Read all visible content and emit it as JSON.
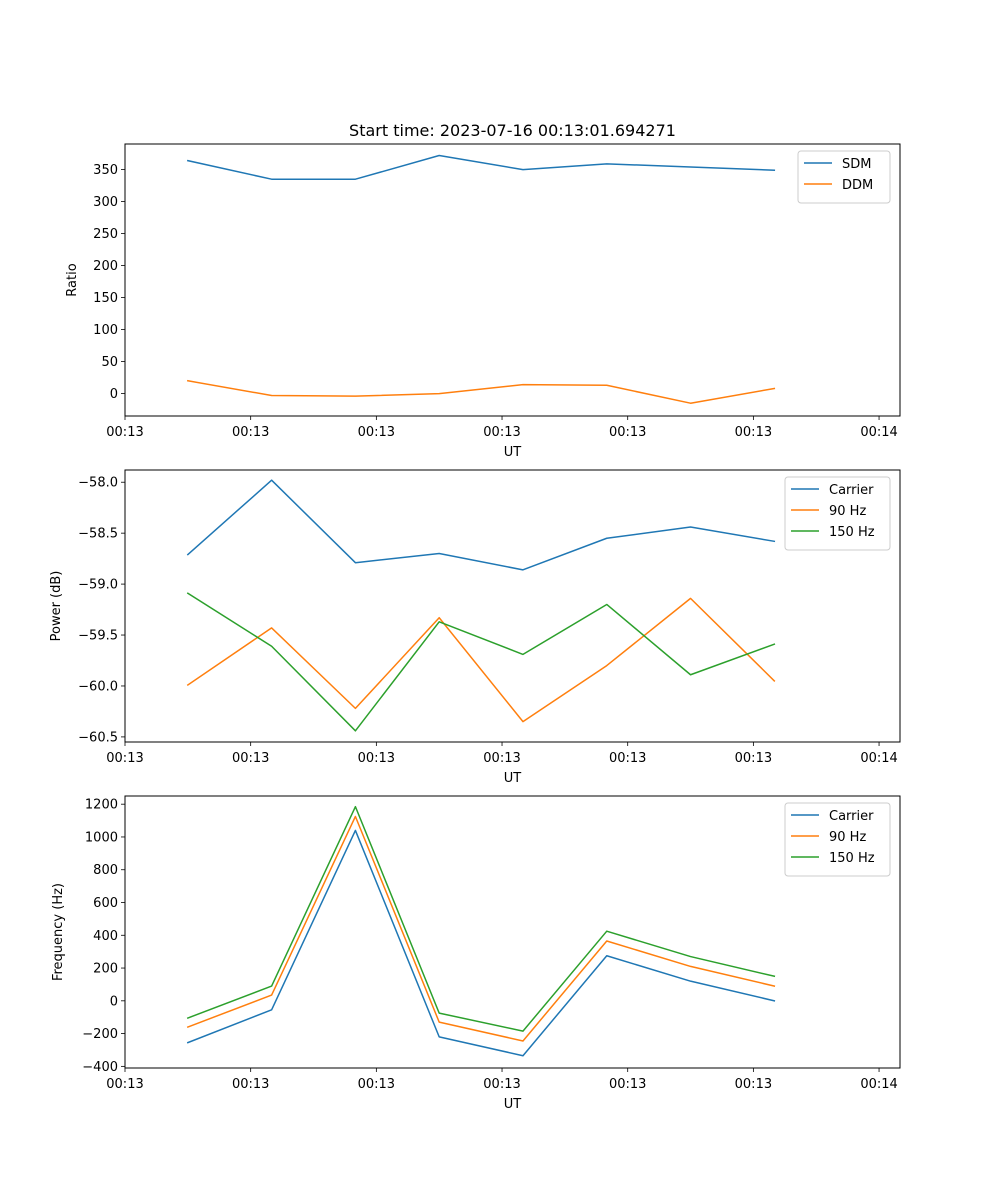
{
  "chart_data": [
    {
      "type": "line",
      "title": "Start time: 2023-07-16 00:13:01.694271",
      "xlabel": "UT",
      "ylabel": "Ratio",
      "x": [
        1,
        2,
        3,
        4,
        5,
        6,
        7,
        8
      ],
      "xlim": [
        0.25,
        9.5
      ],
      "xticks": [
        0.25,
        1.75,
        3.25,
        4.75,
        6.25,
        7.75,
        9.25
      ],
      "xtick_labels": [
        "00:13",
        "00:13",
        "00:13",
        "00:13",
        "00:13",
        "00:13",
        "00:14"
      ],
      "ylim": [
        -35,
        390
      ],
      "yticks": [
        0,
        50,
        100,
        150,
        200,
        250,
        300,
        350
      ],
      "ytick_labels": [
        "0",
        "50",
        "100",
        "150",
        "200",
        "250",
        "300",
        "350"
      ],
      "legend_position": "top-right",
      "series": [
        {
          "name": "SDM",
          "color": "#1f77b4",
          "values": [
            364,
            335,
            335,
            372,
            350,
            359,
            354,
            349
          ]
        },
        {
          "name": "DDM",
          "color": "#ff7f0e",
          "values": [
            20,
            -3,
            -4,
            0,
            14,
            13,
            -15,
            8
          ]
        }
      ]
    },
    {
      "type": "line",
      "title": "",
      "xlabel": "UT",
      "ylabel": "Power (dB)",
      "x": [
        1,
        2,
        3,
        4,
        5,
        6,
        7,
        8
      ],
      "xlim": [
        0.25,
        9.5
      ],
      "xticks": [
        0.25,
        1.75,
        3.25,
        4.75,
        6.25,
        7.75,
        9.25
      ],
      "xtick_labels": [
        "00:13",
        "00:13",
        "00:13",
        "00:13",
        "00:13",
        "00:13",
        "00:14"
      ],
      "ylim": [
        -60.55,
        -57.88
      ],
      "yticks": [
        -60.5,
        -60.0,
        -59.5,
        -59.0,
        -58.5,
        -58.0
      ],
      "ytick_labels": [
        "−60.5",
        "−60.0",
        "−59.5",
        "−59.0",
        "−58.5",
        "−58.0"
      ],
      "legend_position": "top-right",
      "series": [
        {
          "name": "Carrier",
          "color": "#1f77b4",
          "values": [
            -58.71,
            -57.98,
            -58.79,
            -58.7,
            -58.86,
            -58.55,
            -58.44,
            -58.58
          ]
        },
        {
          "name": "90 Hz",
          "color": "#ff7f0e",
          "values": [
            -59.99,
            -59.43,
            -60.22,
            -59.33,
            -60.35,
            -59.8,
            -59.14,
            -59.95
          ]
        },
        {
          "name": "150 Hz",
          "color": "#2ca02c",
          "values": [
            -59.09,
            -59.61,
            -60.44,
            -59.37,
            -59.69,
            -59.2,
            -59.89,
            -59.59
          ]
        }
      ]
    },
    {
      "type": "line",
      "title": "",
      "xlabel": "UT",
      "ylabel": "Frequency (Hz)",
      "x": [
        1,
        2,
        3,
        4,
        5,
        6,
        7,
        8
      ],
      "xlim": [
        0.25,
        9.5
      ],
      "xticks": [
        0.25,
        1.75,
        3.25,
        4.75,
        6.25,
        7.75,
        9.25
      ],
      "xtick_labels": [
        "00:13",
        "00:13",
        "00:13",
        "00:13",
        "00:13",
        "00:13",
        "00:14"
      ],
      "ylim": [
        -410,
        1250
      ],
      "yticks": [
        -400,
        -200,
        0,
        200,
        400,
        600,
        800,
        1000,
        1200
      ],
      "ytick_labels": [
        "−400",
        "−200",
        "0",
        "200",
        "400",
        "600",
        "800",
        "1000",
        "1200"
      ],
      "legend_position": "top-right",
      "series": [
        {
          "name": "Carrier",
          "color": "#1f77b4",
          "values": [
            -255,
            -55,
            1040,
            -220,
            -335,
            275,
            120,
            0
          ]
        },
        {
          "name": "90 Hz",
          "color": "#ff7f0e",
          "values": [
            -160,
            35,
            1125,
            -130,
            -245,
            365,
            210,
            90
          ]
        },
        {
          "name": "150 Hz",
          "color": "#2ca02c",
          "values": [
            -105,
            90,
            1185,
            -75,
            -185,
            425,
            270,
            150
          ]
        }
      ]
    }
  ]
}
